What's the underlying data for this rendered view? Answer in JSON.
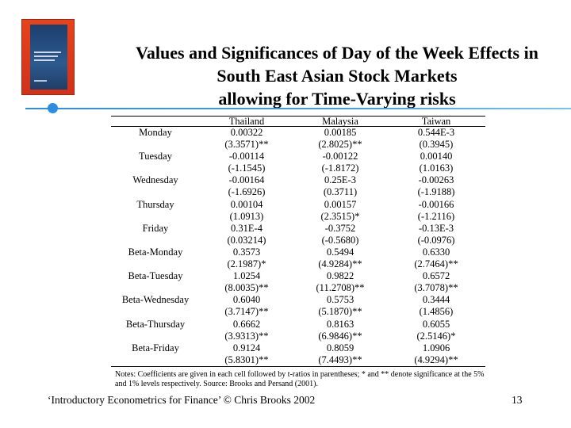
{
  "slide": {
    "title_lines": [
      "Values and Significances of Day of the Week Effects in",
      "South East Asian Stock Markets",
      "allowing for Time-Varying risks"
    ],
    "footer": "‘Introductory Econometrics for Finance’ © Chris Brooks 2002",
    "page_number": "13",
    "colors": {
      "accent": "#2c8ee0",
      "book_cover": "#e8431a"
    }
  },
  "table": {
    "headers": [
      "",
      "Thailand",
      "Malaysia",
      "Taiwan"
    ],
    "rows": [
      [
        "Monday",
        "0.00322",
        "0.00185",
        "0.544E-3"
      ],
      [
        "",
        "(3.3571)**",
        "(2.8025)**",
        "(0.3945)"
      ],
      [
        "Tuesday",
        "-0.00114",
        "-0.00122",
        "0.00140"
      ],
      [
        "",
        "(-1.1545)",
        "(-1.8172)",
        "(1.0163)"
      ],
      [
        "Wednesday",
        "-0.00164",
        "0.25E-3",
        "-0.00263"
      ],
      [
        "",
        "(-1.6926)",
        "(0.3711)",
        "(-1.9188)"
      ],
      [
        "Thursday",
        "0.00104",
        "0.00157",
        "-0.00166"
      ],
      [
        "",
        "(1.0913)",
        "(2.3515)*",
        "(-1.2116)"
      ],
      [
        "Friday",
        "0.31E-4",
        "-0.3752",
        "-0.13E-3"
      ],
      [
        "",
        "(0.03214)",
        "(-0.5680)",
        "(-0.0976)"
      ],
      [
        "Beta-Monday",
        "0.3573",
        "0.5494",
        "0.6330"
      ],
      [
        "",
        "(2.1987)*",
        "(4.9284)**",
        "(2.7464)**"
      ],
      [
        "Beta-Tuesday",
        "1.0254",
        "0.9822",
        "0.6572"
      ],
      [
        "",
        "(8.0035)**",
        "(11.2708)**",
        "(3.7078)**"
      ],
      [
        "Beta-Wednesday",
        "0.6040",
        "0.5753",
        "0.3444"
      ],
      [
        "",
        "(3.7147)**",
        "(5.1870)**",
        "(1.4856)"
      ],
      [
        "Beta-Thursday",
        "0.6662",
        "0.8163",
        "0.6055"
      ],
      [
        "",
        "(3.9313)**",
        "(6.9846)**",
        "(2.5146)*"
      ],
      [
        "Beta-Friday",
        "0.9124",
        "0.8059",
        "1.0906"
      ],
      [
        "",
        "(5.8301)**",
        "(7.4493)**",
        "(4.9294)**"
      ]
    ],
    "notes": "Notes: Coefficients are given in each cell followed by t-ratios in parentheses; * and ** denote significance at the 5% and 1% levels respectively. Source: Brooks and Persand (2001)."
  }
}
